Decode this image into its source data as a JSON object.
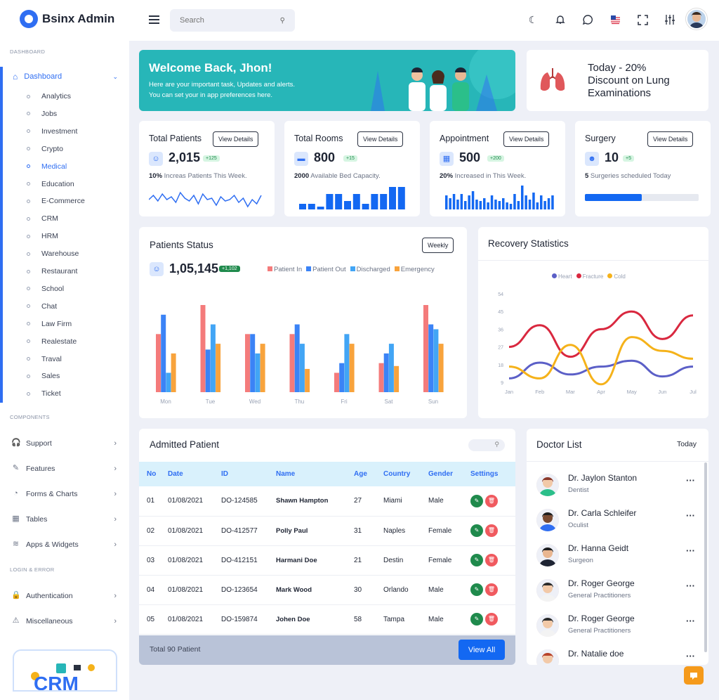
{
  "app": {
    "title": "Bsinx Admin"
  },
  "colors": {
    "primary": "#2f6ef2",
    "teal": "#27b6b8",
    "red": "#f47b7b",
    "blue": "#3b83f6",
    "lightblue": "#42a5f5",
    "orange": "#f8a33c",
    "green": "#1f8a4c",
    "danger": "#f05a5f",
    "heart": "#5b5fc7",
    "fracture": "#d9283f",
    "cold": "#f5b21a"
  },
  "sidebar": {
    "section_dashboard": "DASHBOARD",
    "dashboard_label": "Dashboard",
    "items": [
      {
        "label": "Analytics"
      },
      {
        "label": "Jobs"
      },
      {
        "label": "Investment"
      },
      {
        "label": "Crypto"
      },
      {
        "label": "Medical",
        "active": true
      },
      {
        "label": "Education"
      },
      {
        "label": "E-Commerce"
      },
      {
        "label": "CRM"
      },
      {
        "label": "HRM"
      },
      {
        "label": "Warehouse"
      },
      {
        "label": "Restaurant"
      },
      {
        "label": "School"
      },
      {
        "label": "Chat"
      },
      {
        "label": "Law Firm"
      },
      {
        "label": "Realestate"
      },
      {
        "label": "Traval"
      },
      {
        "label": "Sales"
      },
      {
        "label": "Ticket"
      }
    ],
    "section_components": "COMPONENTS",
    "components": [
      {
        "label": "Support",
        "icon": "headphones-icon"
      },
      {
        "label": "Features",
        "icon": "edit-icon"
      },
      {
        "label": "Forms & Charts",
        "icon": "pie-chart-icon"
      },
      {
        "label": "Tables",
        "icon": "grid-icon"
      },
      {
        "label": "Apps & Widgets",
        "icon": "database-icon"
      }
    ],
    "section_login": "LOGIN & ERROR",
    "login": [
      {
        "label": "Authentication",
        "icon": "lock-icon"
      },
      {
        "label": "Miscellaneous",
        "icon": "warning-icon"
      }
    ],
    "promo_text": "CRM"
  },
  "header": {
    "search_placeholder": "Search"
  },
  "welcome": {
    "title": "Welcome Back, Jhon!",
    "line1": "Here are your important task, Updates and alerts.",
    "line2": "You can set your in app preferences here."
  },
  "promo": {
    "line1": "Today - 20%",
    "line2": "Discount on Lung",
    "line3": "Examinations"
  },
  "stats": [
    {
      "title": "Total Patients",
      "button": "View Details",
      "value": "2,015",
      "badge": "+125",
      "strong": "10%",
      "text": " Increas Patients This Week.",
      "icon": "user-icon"
    },
    {
      "title": "Total Rooms",
      "button": "View Details",
      "value": "800",
      "badge": "+15",
      "strong": "2000",
      "text": " Available Bed Capacity.",
      "icon": "bed-icon"
    },
    {
      "title": "Appointment",
      "button": "View Details",
      "value": "500",
      "badge": "+200",
      "strong": "20%",
      "text": " Increased in This Week.",
      "icon": "calendar-icon"
    },
    {
      "title": "Surgery",
      "button": "View Details",
      "value": "10",
      "badge": "+5",
      "strong": "5",
      "text": " Surgeries scheduled Today",
      "icon": "doctor-icon",
      "progress": 0.4
    }
  ],
  "patients_status": {
    "title": "Patients Status",
    "button": "Weekly",
    "value": "1,05,145",
    "badge": "+1,102",
    "chart_data": {
      "type": "bar",
      "categories": [
        "Mon",
        "Tue",
        "Wed",
        "Thu",
        "Fri",
        "Sat",
        "Sun"
      ],
      "series": [
        {
          "name": "Patient In",
          "color": "#f47b7b",
          "values": [
            60,
            90,
            60,
            60,
            20,
            30,
            90
          ]
        },
        {
          "name": "Patient Out",
          "color": "#3b83f6",
          "values": [
            80,
            44,
            60,
            70,
            30,
            40,
            70
          ]
        },
        {
          "name": "Discharged",
          "color": "#42a5f5",
          "values": [
            20,
            70,
            40,
            50,
            60,
            50,
            65
          ]
        },
        {
          "name": "Emergency",
          "color": "#f8a33c",
          "values": [
            40,
            50,
            50,
            24,
            50,
            27,
            50
          ]
        }
      ]
    }
  },
  "recovery": {
    "title": "Recovery Statistics",
    "chart_data": {
      "type": "line",
      "x": [
        "Jan",
        "Feb",
        "Mar",
        "Apr",
        "May",
        "Jun",
        "Jul"
      ],
      "yticks": [
        9,
        18,
        27,
        36,
        45,
        54
      ],
      "ylim": [
        9,
        54
      ],
      "series": [
        {
          "name": "Heart",
          "color": "#5b5fc7",
          "values": [
            11,
            19,
            13,
            17,
            20,
            12,
            17
          ]
        },
        {
          "name": "Fracture",
          "color": "#d9283f",
          "values": [
            27,
            38,
            22,
            36,
            45,
            31,
            43
          ]
        },
        {
          "name": "Cold",
          "color": "#f5b21a",
          "values": [
            17,
            11,
            28,
            8,
            32,
            25,
            21
          ]
        }
      ]
    }
  },
  "admitted": {
    "title": "Admitted Patient",
    "columns": [
      "No",
      "Date",
      "ID",
      "Name",
      "Age",
      "Country",
      "Gender",
      "Settings"
    ],
    "rows": [
      [
        "01",
        "01/08/2021",
        "DO-124585",
        "Shawn Hampton",
        "27",
        "Miami",
        "Male"
      ],
      [
        "02",
        "01/08/2021",
        "DO-412577",
        "Polly Paul",
        "31",
        "Naples",
        "Female"
      ],
      [
        "03",
        "01/08/2021",
        "DO-412151",
        "Harmani Doe",
        "21",
        "Destin",
        "Female"
      ],
      [
        "04",
        "01/08/2021",
        "DO-123654",
        "Mark Wood",
        "30",
        "Orlando",
        "Male"
      ],
      [
        "05",
        "01/08/2021",
        "DO-159874",
        "Johen Doe",
        "58",
        "Tampa",
        "Male"
      ]
    ],
    "footer": "Total 90 Patient",
    "view_all": "View All"
  },
  "doctors": {
    "title": "Doctor List",
    "filter": "Today",
    "items": [
      {
        "name": "Dr. Jaylon Stanton",
        "role": "Dentist"
      },
      {
        "name": "Dr. Carla Schleifer",
        "role": "Oculist"
      },
      {
        "name": "Dr. Hanna Geidt",
        "role": "Surgeon"
      },
      {
        "name": "Dr. Roger George",
        "role": "General Practitioners"
      },
      {
        "name": "Dr. Roger George",
        "role": "General Practitioners"
      },
      {
        "name": "Dr. Natalie doe",
        "role": ""
      }
    ]
  }
}
